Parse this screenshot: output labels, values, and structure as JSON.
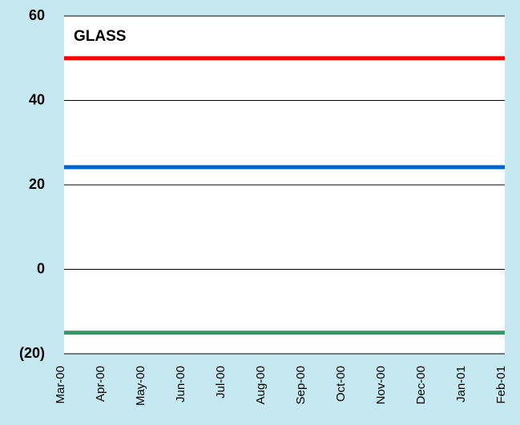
{
  "chart_data": {
    "type": "line",
    "title": "GLASS",
    "categories": [
      "Mar-00",
      "Apr-00",
      "May-00",
      "Jun-00",
      "Jul-00",
      "Aug-00",
      "Sep-00",
      "Oct-00",
      "Nov-00",
      "Dec-00",
      "Jan-01",
      "Feb-01"
    ],
    "series": [
      {
        "color": "#ff0000",
        "values": [
          50,
          50,
          50,
          50,
          50,
          50,
          50,
          50,
          50,
          50,
          50,
          50
        ]
      },
      {
        "color": "#0066cc",
        "values": [
          24.2,
          24.2,
          24.2,
          24.2,
          24.2,
          24.2,
          24.2,
          24.2,
          24.2,
          24.2,
          24.2,
          24.2
        ]
      },
      {
        "color": "#339966",
        "values": [
          -15,
          -15,
          -15,
          -15,
          -15,
          -15,
          -15,
          -15,
          -15,
          -15,
          -15,
          -15
        ]
      }
    ],
    "ylim": [
      -20,
      60
    ],
    "yticks": [
      {
        "value": -20,
        "label": "(20)"
      },
      0,
      20,
      40,
      60
    ],
    "grid": true
  }
}
